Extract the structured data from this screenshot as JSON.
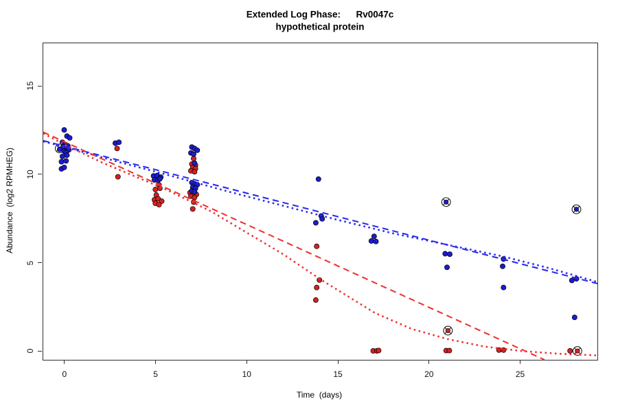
{
  "title": {
    "line1": "Extended Log Phase:      Rv0047c",
    "line2": "hypothetical protein"
  },
  "chart_data": {
    "type": "scatter",
    "title": "Extended Log Phase: Rv0047c — hypothetical protein",
    "xlabel": "Time  (days)",
    "ylabel": "Abundance  (log2 RPMHEG)",
    "xlim": [
      -1.2,
      29.2
    ],
    "ylim": [
      -0.45,
      17.45
    ],
    "x_ticks": [
      0,
      5,
      10,
      15,
      20,
      25
    ],
    "y_ticks": [
      0,
      5,
      10,
      15
    ],
    "grid": false,
    "legend": "none",
    "colors": {
      "blue": "#1c1ccd",
      "red": "#d42222",
      "blue_line": "#2b2bf0",
      "red_line": "#ef3434",
      "black": "#1a1a1a",
      "marker_outline": "#000000",
      "axis": "#2e2e2e"
    },
    "series": [
      {
        "name": "outlier-marker-black",
        "type": "circled_points",
        "color": "black",
        "points": [
          [
            -0.3,
            11.5
          ]
        ]
      },
      {
        "name": "red-points",
        "type": "points",
        "color": "red",
        "points": [
          [
            -0.1,
            11.62
          ],
          [
            0.1,
            11.42
          ],
          [
            2.85,
            11.5
          ],
          [
            2.9,
            9.9
          ],
          [
            5.15,
            9.44
          ],
          [
            5.2,
            9.25
          ],
          [
            4.95,
            9.18
          ],
          [
            5.0,
            8.87
          ],
          [
            4.9,
            8.6
          ],
          [
            5.1,
            8.66
          ],
          [
            5.3,
            8.52
          ],
          [
            4.95,
            8.4
          ],
          [
            5.15,
            8.32
          ],
          [
            7.05,
            10.93
          ],
          [
            6.95,
            10.62
          ],
          [
            7.15,
            10.55
          ],
          [
            7.0,
            10.42
          ],
          [
            7.15,
            10.36
          ],
          [
            6.9,
            10.24
          ],
          [
            7.1,
            10.18
          ],
          [
            6.85,
            9.0
          ],
          [
            7.0,
            8.96
          ],
          [
            7.2,
            8.9
          ],
          [
            6.9,
            8.8
          ],
          [
            7.1,
            8.73
          ],
          [
            7.05,
            8.47
          ],
          [
            7.0,
            8.08
          ],
          [
            13.8,
            5.97
          ],
          [
            13.95,
            4.06
          ],
          [
            13.8,
            3.64
          ],
          [
            13.75,
            2.93
          ],
          [
            16.9,
            0.06
          ],
          [
            17.1,
            0.06
          ],
          [
            17.2,
            0.08
          ],
          [
            20.9,
            0.07
          ],
          [
            21.08,
            0.07
          ],
          [
            23.8,
            0.1
          ],
          [
            24.05,
            0.1
          ],
          [
            27.7,
            0.06
          ]
        ]
      },
      {
        "name": "blue-points",
        "type": "points",
        "color": "blue",
        "points": [
          [
            -0.05,
            12.55
          ],
          [
            0.1,
            12.2
          ],
          [
            0.25,
            12.1
          ],
          [
            -0.15,
            11.85
          ],
          [
            0.0,
            11.7
          ],
          [
            0.15,
            11.65
          ],
          [
            -0.1,
            11.6
          ],
          [
            0.1,
            11.5
          ],
          [
            0.2,
            11.42
          ],
          [
            -0.05,
            11.35
          ],
          [
            0.05,
            11.28
          ],
          [
            -0.3,
            11.45
          ],
          [
            -0.15,
            11.05
          ],
          [
            0.1,
            11.12
          ],
          [
            -0.2,
            10.75
          ],
          [
            0.05,
            10.8
          ],
          [
            -0.2,
            10.35
          ],
          [
            -0.05,
            10.43
          ],
          [
            2.75,
            11.8
          ],
          [
            2.95,
            11.85
          ],
          [
            4.85,
            9.95
          ],
          [
            5.05,
            9.97
          ],
          [
            5.25,
            9.88
          ],
          [
            4.9,
            9.72
          ],
          [
            5.1,
            9.7
          ],
          [
            5.2,
            9.78
          ],
          [
            6.95,
            11.58
          ],
          [
            7.1,
            11.5
          ],
          [
            7.25,
            11.4
          ],
          [
            6.9,
            11.25
          ],
          [
            7.05,
            11.18
          ],
          [
            7.1,
            10.67
          ],
          [
            6.95,
            9.57
          ],
          [
            7.1,
            9.5
          ],
          [
            7.25,
            9.45
          ],
          [
            7.0,
            9.3
          ],
          [
            7.15,
            9.25
          ],
          [
            6.95,
            9.1
          ],
          [
            7.1,
            9.05
          ],
          [
            13.9,
            9.77
          ],
          [
            14.05,
            7.68
          ],
          [
            14.1,
            7.52
          ],
          [
            13.75,
            7.3
          ],
          [
            16.95,
            6.53
          ],
          [
            16.8,
            6.27
          ],
          [
            17.05,
            6.24
          ],
          [
            20.85,
            5.55
          ],
          [
            21.1,
            5.52
          ],
          [
            20.95,
            4.78
          ],
          [
            24.05,
            5.25
          ],
          [
            24.0,
            4.84
          ],
          [
            24.05,
            3.64
          ],
          [
            27.8,
            4.04
          ],
          [
            28.05,
            4.13
          ],
          [
            27.95,
            1.95
          ]
        ]
      },
      {
        "name": "outlier-markers-blue",
        "type": "circled_points",
        "color": "blue",
        "points": [
          [
            20.9,
            8.47
          ],
          [
            28.05,
            8.06
          ]
        ]
      },
      {
        "name": "outlier-markers-red",
        "type": "circled_points",
        "color": "red",
        "points": [
          [
            21.0,
            1.2
          ],
          [
            28.1,
            0.05
          ]
        ]
      },
      {
        "name": "blue-dashed-fit",
        "type": "line",
        "style": "dashed",
        "color": "blue",
        "points": [
          [
            -1.2,
            11.94
          ],
          [
            29.2,
            3.86
          ]
        ]
      },
      {
        "name": "blue-dotted-fit",
        "type": "line",
        "style": "dotted",
        "color": "blue",
        "points": [
          [
            -1.2,
            11.9
          ],
          [
            0,
            11.58
          ],
          [
            3,
            10.72
          ],
          [
            6,
            9.9
          ],
          [
            9,
            9.05
          ],
          [
            12,
            8.25
          ],
          [
            15,
            7.45
          ],
          [
            18,
            6.7
          ],
          [
            21,
            6.05
          ],
          [
            24,
            5.4
          ],
          [
            26.5,
            4.75
          ],
          [
            29.2,
            3.95
          ]
        ]
      },
      {
        "name": "red-dashed-fit",
        "type": "line",
        "style": "dashed",
        "color": "red",
        "points": [
          [
            -1.2,
            12.42
          ],
          [
            26.3,
            -0.45
          ]
        ]
      },
      {
        "name": "red-dotted-fit",
        "type": "line",
        "style": "dotted",
        "color": "red",
        "points": [
          [
            -1.2,
            12.35
          ],
          [
            0,
            11.7
          ],
          [
            2,
            10.72
          ],
          [
            4,
            9.85
          ],
          [
            5.5,
            9.2
          ],
          [
            8,
            7.95
          ],
          [
            10,
            6.72
          ],
          [
            12,
            5.5
          ],
          [
            14,
            4.1
          ],
          [
            15.5,
            3.15
          ],
          [
            17,
            2.2
          ],
          [
            19,
            1.3
          ],
          [
            21,
            0.72
          ],
          [
            23,
            0.3
          ],
          [
            25,
            0.05
          ],
          [
            27,
            -0.1
          ],
          [
            29.2,
            -0.2
          ]
        ]
      }
    ]
  }
}
